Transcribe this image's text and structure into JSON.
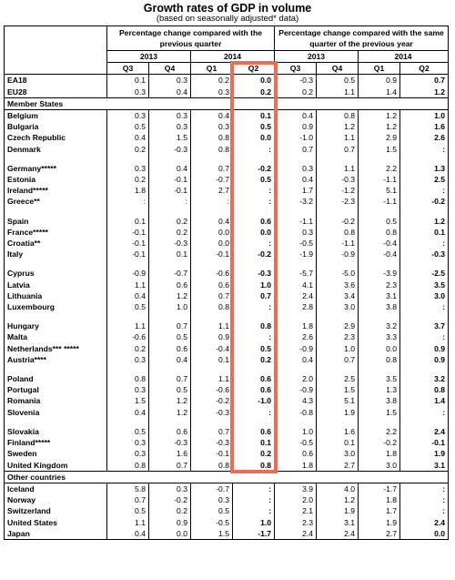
{
  "title": "Growth rates of GDP in volume",
  "subtitle": "(based on seasonally adjusted* data)",
  "headers": {
    "group_a": "Percentage change compared with the previous quarter",
    "group_b": "Percentage change compared with the same quarter of the previous year",
    "year_2013": "2013",
    "year_2014": "2014",
    "q": [
      "Q3",
      "Q4",
      "Q1",
      "Q2",
      "Q3",
      "Q4",
      "Q1",
      "Q2"
    ]
  },
  "sections": {
    "member_states": "Member States",
    "other_countries": "Other countries"
  },
  "aggregates": [
    {
      "name": "EA18",
      "v": [
        "0.1",
        "0.3",
        "0.2",
        "0.0",
        "-0.3",
        "0.5",
        "0.9",
        "0.7"
      ]
    },
    {
      "name": "EU28",
      "v": [
        "0.3",
        "0.4",
        "0.3",
        "0.2",
        "0.2",
        "1.1",
        "1.4",
        "1.2"
      ]
    }
  ],
  "member_groups": [
    [
      {
        "name": "Belgium",
        "v": [
          "0.3",
          "0.3",
          "0.4",
          "0.1",
          "0.4",
          "0.8",
          "1.2",
          "1.0"
        ]
      },
      {
        "name": "Bulgaria",
        "v": [
          "0.5",
          "0.3",
          "0.3",
          "0.5",
          "0.9",
          "1.2",
          "1.2",
          "1.6"
        ]
      },
      {
        "name": "Czech Republic",
        "v": [
          "0.4",
          "1.5",
          "0.8",
          "0.0",
          "-1.0",
          "1.1",
          "2.9",
          "2.6"
        ]
      },
      {
        "name": "Denmark",
        "v": [
          "0.2",
          "-0.3",
          "0.8",
          ":",
          "0.7",
          "0.7",
          "1.5",
          ":"
        ]
      }
    ],
    [
      {
        "name": "Germany*****",
        "v": [
          "0.3",
          "0.4",
          "0.7",
          "-0.2",
          "0.3",
          "1.1",
          "2.2",
          "1.3"
        ]
      },
      {
        "name": "Estonia",
        "v": [
          "0.2",
          "-0.1",
          "-0.7",
          "0.5",
          "0.4",
          "-0.3",
          "-1.1",
          "2.5"
        ]
      },
      {
        "name": "Ireland*****",
        "v": [
          "1.8",
          "-0.1",
          "2.7",
          ":",
          "1.7",
          "-1.2",
          "5.1",
          ":"
        ]
      },
      {
        "name": "Greece**",
        "v": [
          ":",
          ":",
          ":",
          ":",
          "-3.2",
          "-2.3",
          "-1.1",
          "-0.2"
        ]
      }
    ],
    [
      {
        "name": "Spain",
        "v": [
          "0.1",
          "0.2",
          "0.4",
          "0.6",
          "-1.1",
          "-0.2",
          "0.5",
          "1.2"
        ]
      },
      {
        "name": "France*****",
        "v": [
          "-0.1",
          "0.2",
          "0.0",
          "0.0",
          "0.3",
          "0.8",
          "0.8",
          "0.1"
        ]
      },
      {
        "name": "Croatia**",
        "v": [
          "-0.1",
          "-0.3",
          "0.0",
          ":",
          "-0.5",
          "-1.1",
          "-0.4",
          ":"
        ]
      },
      {
        "name": "Italy",
        "v": [
          "-0.1",
          "0.1",
          "-0.1",
          "-0.2",
          "-1.9",
          "-0.9",
          "-0.4",
          "-0.3"
        ]
      }
    ],
    [
      {
        "name": "Cyprus",
        "v": [
          "-0.9",
          "-0.7",
          "-0.6",
          "-0.3",
          "-5.7",
          "-5.0",
          "-3.9",
          "-2.5"
        ]
      },
      {
        "name": "Latvia",
        "v": [
          "1.1",
          "0.6",
          "0.6",
          "1.0",
          "4.1",
          "3.6",
          "2.3",
          "3.5"
        ]
      },
      {
        "name": "Lithuania",
        "v": [
          "0.4",
          "1.2",
          "0.7",
          "0.7",
          "2.4",
          "3.4",
          "3.1",
          "3.0"
        ]
      },
      {
        "name": "Luxembourg",
        "v": [
          "0.5",
          "1.0",
          "0.8",
          ":",
          "2.8",
          "3.0",
          "3.8",
          ":"
        ]
      }
    ],
    [
      {
        "name": "Hungary",
        "v": [
          "1.1",
          "0.7",
          "1.1",
          "0.8",
          "1.8",
          "2.9",
          "3.2",
          "3.7"
        ]
      },
      {
        "name": "Malta",
        "v": [
          "-0.6",
          "0.5",
          "0.9",
          ":",
          "2.6",
          "2.3",
          "3.3",
          ":"
        ]
      },
      {
        "name": "Netherlands*** *****",
        "v": [
          "0.2",
          "0.6",
          "-0.4",
          "0.5",
          "-0.9",
          "1.0",
          "0.0",
          "0.9"
        ]
      },
      {
        "name": "Austria****",
        "v": [
          "0.3",
          "0.4",
          "0.1",
          "0.2",
          "0.4",
          "0.7",
          "0.8",
          "0.9"
        ]
      }
    ],
    [
      {
        "name": "Poland",
        "v": [
          "0.8",
          "0.7",
          "1.1",
          "0.6",
          "2.0",
          "2.5",
          "3.5",
          "3.2"
        ]
      },
      {
        "name": "Portugal",
        "v": [
          "0.3",
          "0.5",
          "-0.6",
          "0.6",
          "-0.9",
          "1.5",
          "1.3",
          "0.8"
        ]
      },
      {
        "name": "Romania",
        "v": [
          "1.5",
          "1.2",
          "-0.2",
          "-1.0",
          "4.3",
          "5.1",
          "3.8",
          "1.4"
        ]
      },
      {
        "name": "Slovenia",
        "v": [
          "0.4",
          "1.2",
          "-0.3",
          ":",
          "-0.8",
          "1.9",
          "1.5",
          ":"
        ]
      }
    ],
    [
      {
        "name": "Slovakia",
        "v": [
          "0.5",
          "0.6",
          "0.7",
          "0.6",
          "1.0",
          "1.6",
          "2.2",
          "2.4"
        ]
      },
      {
        "name": "Finland*****",
        "v": [
          "0.3",
          "-0.3",
          "-0.3",
          "0.1",
          "-0.5",
          "0.1",
          "-0.2",
          "-0.1"
        ]
      },
      {
        "name": "Sweden",
        "v": [
          "0.3",
          "1.6",
          "-0.1",
          "0.2",
          "0.6",
          "3.0",
          "1.8",
          "1.9"
        ]
      },
      {
        "name": "United Kingdom",
        "v": [
          "0.8",
          "0.7",
          "0.8",
          "0.8",
          "1.8",
          "2.7",
          "3.0",
          "3.1"
        ]
      }
    ]
  ],
  "other": [
    {
      "name": "Iceland",
      "v": [
        "5.8",
        "0.3",
        "-0.7",
        ":",
        "3.9",
        "4.0",
        "-1.7",
        ":"
      ]
    },
    {
      "name": "Norway",
      "v": [
        "0.7",
        "-0.2",
        "0.3",
        ":",
        "2.0",
        "1.2",
        "1.8",
        ":"
      ]
    },
    {
      "name": "Switzerland",
      "v": [
        "0.5",
        "0.2",
        "0.5",
        ":",
        "2.1",
        "1.9",
        "1.7",
        ":"
      ]
    },
    {
      "name": "United States",
      "v": [
        "1.1",
        "0.9",
        "-0.5",
        "1.0",
        "2.3",
        "3.1",
        "1.9",
        "2.4"
      ]
    },
    {
      "name": "Japan",
      "v": [
        "0.4",
        "0.0",
        "1.5",
        "-1.7",
        "2.4",
        "2.4",
        "2.7",
        "0.0"
      ]
    }
  ],
  "colors": {
    "highlight": "#ef6b52"
  }
}
